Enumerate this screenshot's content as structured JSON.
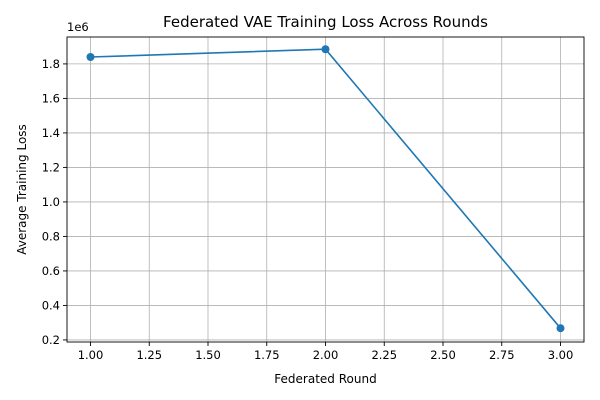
{
  "chart_data": {
    "type": "line",
    "title": "Federated VAE Training Loss Across Rounds",
    "xlabel": "Federated Round",
    "ylabel": "Average Training Loss",
    "y_offset_label": "1e6",
    "x": [
      1,
      2,
      3
    ],
    "series": [
      {
        "values": [
          1840000,
          1885000,
          268000
        ],
        "color": "#1f77b4",
        "marker": "circle"
      }
    ],
    "xlim": [
      0.9,
      3.1
    ],
    "ylim": [
      0.188,
      1.956
    ],
    "xticks": [
      1.0,
      1.25,
      1.5,
      1.75,
      2.0,
      2.25,
      2.5,
      2.75,
      3.0
    ],
    "xtick_labels": [
      "1.00",
      "1.25",
      "1.50",
      "1.75",
      "2.00",
      "2.25",
      "2.50",
      "2.75",
      "3.00"
    ],
    "yticks": [
      0.2,
      0.4,
      0.6,
      0.8,
      1.0,
      1.2,
      1.4,
      1.6,
      1.8
    ],
    "ytick_labels": [
      "0.2",
      "0.4",
      "0.6",
      "0.8",
      "1.0",
      "1.2",
      "1.4",
      "1.6",
      "1.8"
    ],
    "y_scale_factor": 1000000,
    "grid": true,
    "legend": "none"
  }
}
